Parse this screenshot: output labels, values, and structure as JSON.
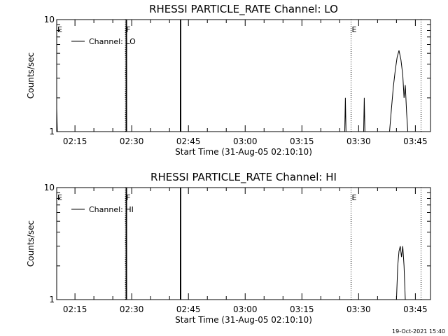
{
  "footer": {
    "timestamp": "19-Oct-2021 15:40"
  },
  "chart_data": [
    {
      "type": "line",
      "title": "RHESSI PARTICLE_RATE Channel: LO",
      "xlabel": "Start Time (31-Aug-05 02:10:10)",
      "ylabel": "Counts/sec",
      "y_scale": "log",
      "ylim": [
        1,
        10
      ],
      "y_ticks": [
        "1",
        "10"
      ],
      "xlim": [
        "02:10:10",
        "03:49:00"
      ],
      "x_ticks": [
        "02:15",
        "02:30",
        "02:45",
        "03:00",
        "03:15",
        "03:30",
        "03:45"
      ],
      "legend": {
        "placement": "top-left",
        "entries": [
          "Channel: LO"
        ]
      },
      "series": [
        {
          "name": "Channel: LO",
          "points": [
            [
              "02:10:10",
              1.6
            ],
            [
              "02:10:20",
              1.0
            ],
            [
              "02:28:30",
              1.0
            ],
            [
              "02:28:31",
              10
            ],
            [
              "02:28:40",
              10
            ],
            [
              "02:28:41",
              1.0
            ],
            [
              "02:42:50",
              1.0
            ],
            [
              "02:42:51",
              10
            ],
            [
              "02:43:00",
              10
            ],
            [
              "02:43:01",
              1.0
            ],
            [
              "03:26:20",
              1.0
            ],
            [
              "03:26:30",
              2.0
            ],
            [
              "03:26:40",
              1.0
            ],
            [
              "03:31:20",
              1.0
            ],
            [
              "03:31:30",
              2.0
            ],
            [
              "03:31:40",
              1.0
            ],
            [
              "03:38:10",
              1.0
            ],
            [
              "03:38:40",
              1.6
            ],
            [
              "03:39:10",
              2.5
            ],
            [
              "03:39:40",
              3.5
            ],
            [
              "03:40:10",
              4.6
            ],
            [
              "03:40:40",
              5.3
            ],
            [
              "03:41:10",
              4.4
            ],
            [
              "03:41:40",
              3.2
            ],
            [
              "03:42:00",
              2.0
            ],
            [
              "03:42:20",
              2.6
            ],
            [
              "03:42:40",
              1.5
            ],
            [
              "03:43:00",
              1.0
            ]
          ]
        }
      ],
      "annotations": [
        {
          "label": "E",
          "time": "02:10:10",
          "style": "dotted"
        },
        {
          "label": "F",
          "time": "02:28:20",
          "style": "dotted"
        },
        {
          "label": "E",
          "time": "03:28:00",
          "style": "dotted"
        },
        {
          "label": "",
          "time": "03:46:30",
          "style": "dotted"
        }
      ]
    },
    {
      "type": "line",
      "title": "RHESSI PARTICLE_RATE Channel: HI",
      "xlabel": "Start Time (31-Aug-05 02:10:10)",
      "ylabel": "Counts/sec",
      "y_scale": "log",
      "ylim": [
        1,
        10
      ],
      "y_ticks": [
        "1",
        "10"
      ],
      "xlim": [
        "02:10:10",
        "03:49:00"
      ],
      "x_ticks": [
        "02:15",
        "02:30",
        "02:45",
        "03:00",
        "03:15",
        "03:30",
        "03:45"
      ],
      "legend": {
        "placement": "top-left",
        "entries": [
          "Channel: HI"
        ]
      },
      "series": [
        {
          "name": "Channel: HI",
          "points": [
            [
              "02:28:30",
              1.0
            ],
            [
              "02:28:31",
              10
            ],
            [
              "02:28:40",
              10
            ],
            [
              "02:28:41",
              1.0
            ],
            [
              "02:42:50",
              1.0
            ],
            [
              "02:42:51",
              10
            ],
            [
              "02:43:00",
              10
            ],
            [
              "02:43:01",
              1.0
            ],
            [
              "03:40:00",
              1.0
            ],
            [
              "03:40:20",
              2.0
            ],
            [
              "03:40:40",
              2.7
            ],
            [
              "03:41:00",
              3.0
            ],
            [
              "03:41:20",
              2.4
            ],
            [
              "03:41:40",
              3.0
            ],
            [
              "03:42:00",
              2.0
            ],
            [
              "03:42:20",
              1.0
            ]
          ]
        }
      ],
      "annotations": [
        {
          "label": "E",
          "time": "02:10:10",
          "style": "dotted"
        },
        {
          "label": "F",
          "time": "02:28:20",
          "style": "dotted"
        },
        {
          "label": "E",
          "time": "03:28:00",
          "style": "dotted"
        },
        {
          "label": "",
          "time": "03:46:30",
          "style": "dotted"
        }
      ]
    }
  ]
}
